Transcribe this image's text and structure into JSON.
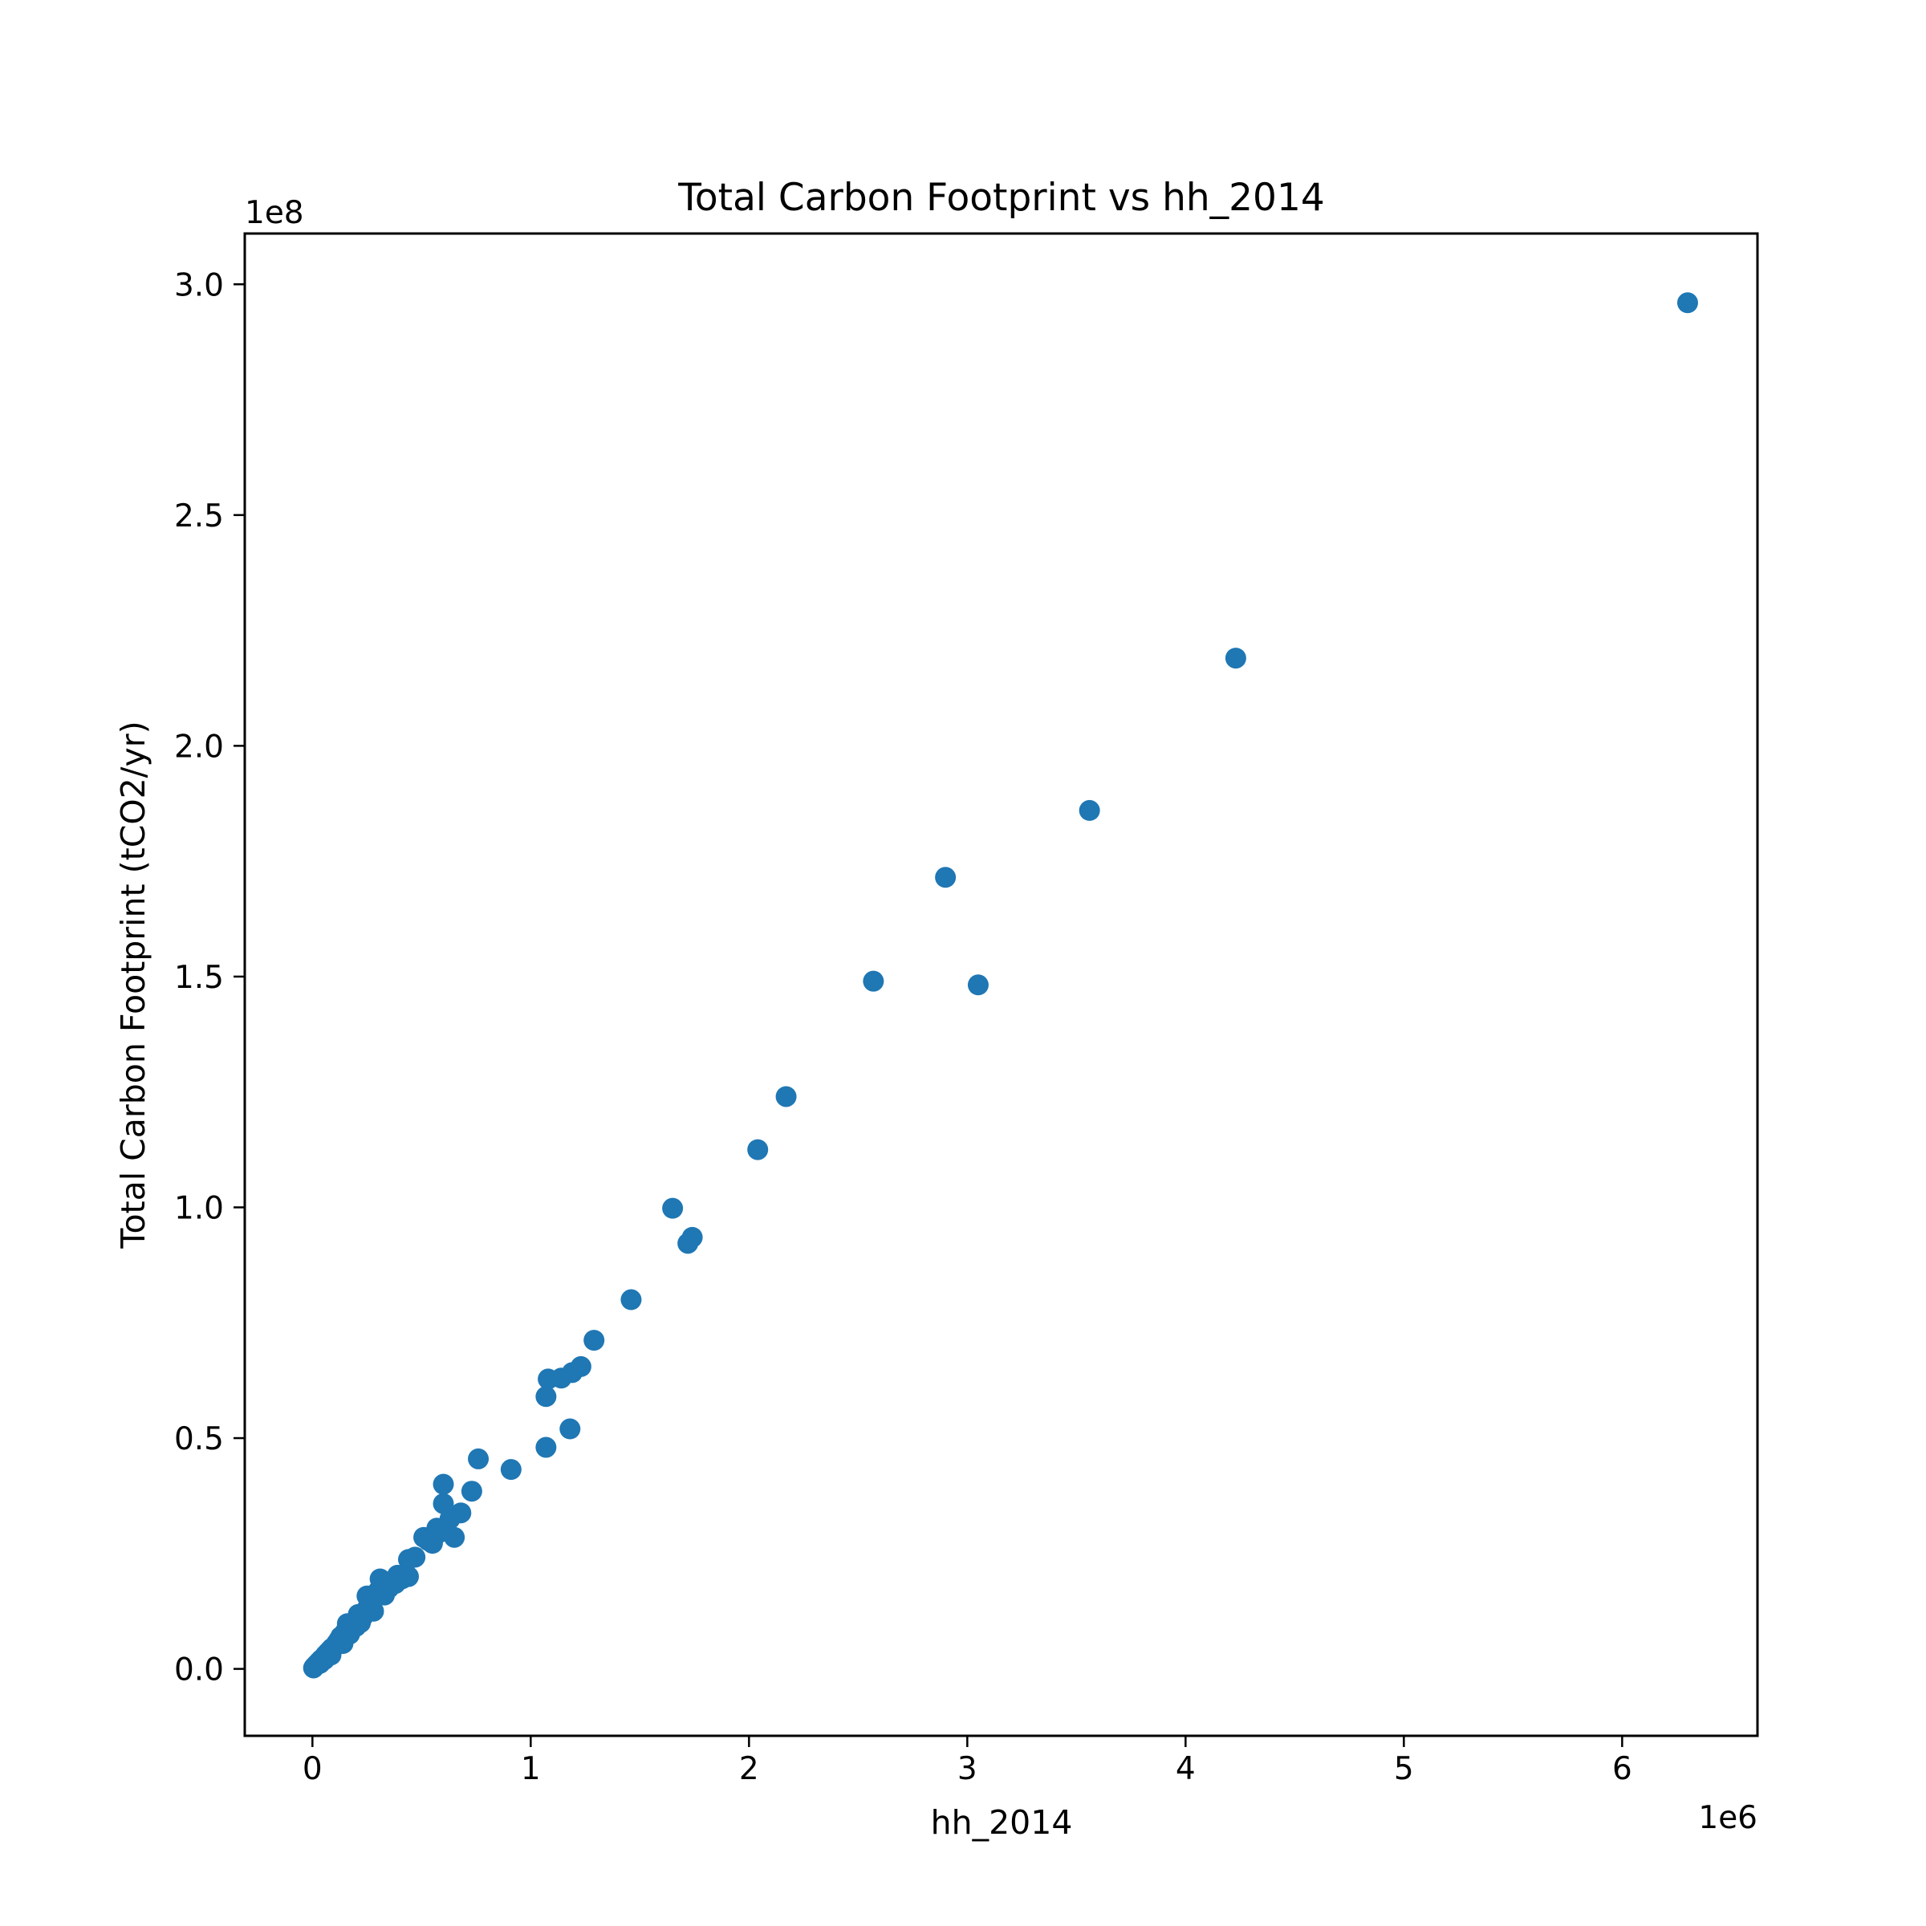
{
  "chart_data": {
    "type": "scatter",
    "title": "Total Carbon Footprint vs hh_2014",
    "xlabel": "hh_2014",
    "ylabel": "Total Carbon Footprint (tCO2/yr)",
    "x_offset_text": "1e6",
    "y_offset_text": "1e8",
    "xlim": [
      -0.31,
      6.62
    ],
    "ylim": [
      -0.145,
      3.11
    ],
    "x_ticks": [
      0,
      1,
      2,
      3,
      4,
      5,
      6
    ],
    "x_tick_labels": [
      "0",
      "1",
      "2",
      "3",
      "4",
      "5",
      "6"
    ],
    "y_ticks": [
      0.0,
      0.5,
      1.0,
      1.5,
      2.0,
      2.5,
      3.0
    ],
    "y_tick_labels": [
      "0.0",
      "0.5",
      "1.0",
      "1.5",
      "2.0",
      "2.5",
      "3.0"
    ],
    "grid": false,
    "legend": "none",
    "x_unit_multiplier": "1e6",
    "y_unit_multiplier": "1e8",
    "series": [
      {
        "color": "#1f77b4",
        "points": [
          [
            6.3,
            2.96
          ],
          [
            4.23,
            2.19
          ],
          [
            3.56,
            1.86
          ],
          [
            2.9,
            1.715
          ],
          [
            2.57,
            1.49
          ],
          [
            3.05,
            1.482
          ],
          [
            2.17,
            1.24
          ],
          [
            2.04,
            1.125
          ],
          [
            1.65,
            0.998
          ],
          [
            1.74,
            0.935
          ],
          [
            1.72,
            0.922
          ],
          [
            1.46,
            0.8
          ],
          [
            1.29,
            0.712
          ],
          [
            1.23,
            0.655
          ],
          [
            1.19,
            0.642
          ],
          [
            1.14,
            0.63
          ],
          [
            1.08,
            0.628
          ],
          [
            1.07,
            0.59
          ],
          [
            1.18,
            0.52
          ],
          [
            1.07,
            0.48
          ],
          [
            0.91,
            0.432
          ],
          [
            0.76,
            0.455
          ],
          [
            0.73,
            0.385
          ],
          [
            0.68,
            0.338
          ],
          [
            0.6,
            0.4
          ],
          [
            0.6,
            0.358
          ],
          [
            0.63,
            0.325
          ],
          [
            0.65,
            0.285
          ],
          [
            0.57,
            0.305
          ],
          [
            0.55,
            0.272
          ],
          [
            0.51,
            0.285
          ],
          [
            0.47,
            0.242
          ],
          [
            0.44,
            0.237
          ],
          [
            0.44,
            0.2
          ],
          [
            0.39,
            0.203
          ],
          [
            0.36,
            0.19
          ],
          [
            0.31,
            0.195
          ],
          [
            0.3,
            0.168
          ],
          [
            0.27,
            0.14
          ],
          [
            0.25,
            0.158
          ],
          [
            0.25,
            0.13
          ],
          [
            0.23,
            0.112
          ],
          [
            0.21,
            0.118
          ],
          [
            0.19,
            0.098
          ],
          [
            0.18,
            0.085
          ],
          [
            0.16,
            0.098
          ],
          [
            0.15,
            0.08
          ],
          [
            0.13,
            0.07
          ],
          [
            0.12,
            0.062
          ],
          [
            0.11,
            0.055
          ],
          [
            0.1,
            0.048
          ],
          [
            0.09,
            0.045
          ],
          [
            0.08,
            0.04
          ],
          [
            0.07,
            0.035
          ],
          [
            0.06,
            0.03
          ],
          [
            0.05,
            0.024
          ],
          [
            0.04,
            0.02
          ],
          [
            0.03,
            0.015
          ],
          [
            0.02,
            0.01
          ],
          [
            0.01,
            0.005
          ],
          [
            0.005,
            0.002
          ],
          [
            0.015,
            0.007
          ],
          [
            0.035,
            0.012
          ],
          [
            0.055,
            0.02
          ],
          [
            0.085,
            0.03
          ],
          [
            0.14,
            0.055
          ],
          [
            0.17,
            0.075
          ],
          [
            0.2,
            0.092
          ],
          [
            0.22,
            0.1
          ],
          [
            0.28,
            0.125
          ],
          [
            0.33,
            0.16
          ],
          [
            0.35,
            0.175
          ],
          [
            0.38,
            0.185
          ],
          [
            0.41,
            0.195
          ],
          [
            0.53,
            0.278
          ],
          [
            0.58,
            0.295
          ]
        ]
      }
    ]
  }
}
